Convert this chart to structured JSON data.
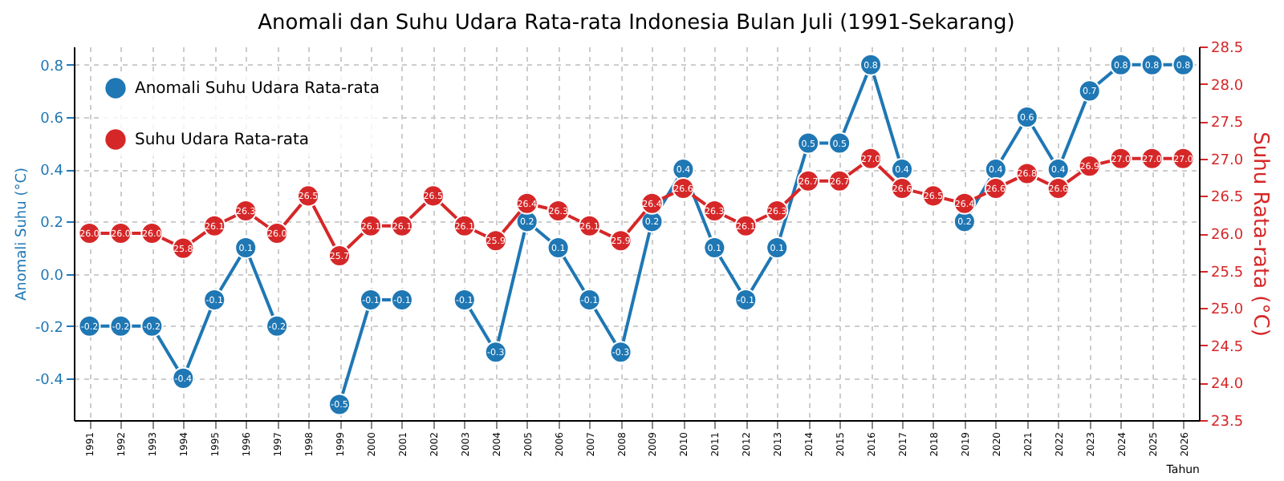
{
  "chart_data": {
    "type": "line",
    "title": "Anomali dan Suhu Udara Rata-rata Indonesia Bulan Juli (1991-Sekarang)",
    "xlabel": "Tahun",
    "ylabel": "Anomali Suhu (°C)",
    "y2label": "Suhu Rata-rata (°C)",
    "categories": [
      "1991",
      "1992",
      "1993",
      "1994",
      "1995",
      "1996",
      "1997",
      "1998",
      "1999",
      "2000",
      "2001",
      "2002",
      "2003",
      "2004",
      "2005",
      "2006",
      "2007",
      "2008",
      "2009",
      "2010",
      "2011",
      "2012",
      "2013",
      "2014",
      "2015",
      "2016",
      "2017",
      "2018",
      "2019",
      "2020",
      "2021",
      "2022",
      "2023",
      "2024",
      "2025",
      "2026"
    ],
    "series": [
      {
        "name": "Anomali Suhu Udara Rata-rata",
        "color": "#1f77b4",
        "values": [
          -0.2,
          -0.2,
          -0.2,
          -0.4,
          -0.1,
          0.1,
          -0.2,
          null,
          -0.5,
          -0.1,
          -0.1,
          null,
          -0.1,
          -0.3,
          0.2,
          0.1,
          -0.1,
          -0.3,
          0.2,
          0.4,
          0.1,
          -0.1,
          0.1,
          0.5,
          0.5,
          0.8,
          0.4,
          null,
          0.2,
          0.4,
          0.6,
          0.4,
          0.7,
          0.8,
          0.8,
          0.8
        ],
        "value_labels": [
          "-0.2",
          "-0.2",
          "-0.2",
          "-0.4",
          "-0.1",
          "0.1",
          "-0.2",
          null,
          "-0.5",
          "-0.1",
          "-0.1",
          null,
          "-0.1",
          "-0.3",
          "0.2",
          "0.1",
          "-0.1",
          "-0.3",
          "0.2",
          "0.4",
          "0.1",
          "-0.1",
          "0.1",
          "0.5",
          "0.5",
          "0.8",
          "0.4",
          null,
          "0.2",
          "0.4",
          "0.6",
          "0.4",
          "0.7",
          "0.8",
          "0.8",
          "0.8"
        ]
      },
      {
        "name": "Suhu Udara Rata-rata",
        "color": "#d62728",
        "axis": "y2",
        "values": [
          26.0,
          26.0,
          26.0,
          25.8,
          26.1,
          26.3,
          26.0,
          26.5,
          25.7,
          26.1,
          26.1,
          26.5,
          26.1,
          25.9,
          26.4,
          26.3,
          26.1,
          25.9,
          26.4,
          26.6,
          26.3,
          26.1,
          26.3,
          26.7,
          26.7,
          27.0,
          26.6,
          26.5,
          26.4,
          26.6,
          26.8,
          26.6,
          26.9,
          27.0,
          27.0,
          27.0
        ],
        "value_labels": [
          "26.0",
          "26.0",
          "26.0",
          "25.8",
          "26.1",
          "26.3",
          "26.0",
          "26.5",
          "25.7",
          "26.1",
          "26.1",
          "26.5",
          "26.1",
          "25.9",
          "26.4",
          "26.3",
          "26.1",
          "25.9",
          "26.4",
          "26.6",
          "26.3",
          "26.1",
          "26.3",
          "26.7",
          "26.7",
          "27.0",
          "26.6",
          "26.5",
          "26.4",
          "26.6",
          "26.8",
          "26.6",
          "26.9",
          "27.0",
          "27.0",
          "27.0"
        ]
      }
    ],
    "ylim": [
      -0.56,
      0.87
    ],
    "yticks": [
      -0.4,
      -0.2,
      {
        "value": 0,
        "label": "0.0"
      },
      0.2,
      0.4,
      0.6,
      0.8
    ],
    "y2lim": [
      23.5,
      28.5
    ],
    "y2ticks": [
      23.5,
      {
        "value": 24,
        "label": "24.0"
      },
      24.5,
      {
        "value": 25,
        "label": "25.0"
      },
      25.5,
      {
        "value": 26,
        "label": "26.0"
      },
      26.5,
      {
        "value": 27,
        "label": "27.0"
      },
      27.5,
      {
        "value": 28,
        "label": "28.0"
      },
      28.5
    ],
    "grid": true,
    "legend": "top left",
    "marker": "circle",
    "line_style": "solid"
  }
}
